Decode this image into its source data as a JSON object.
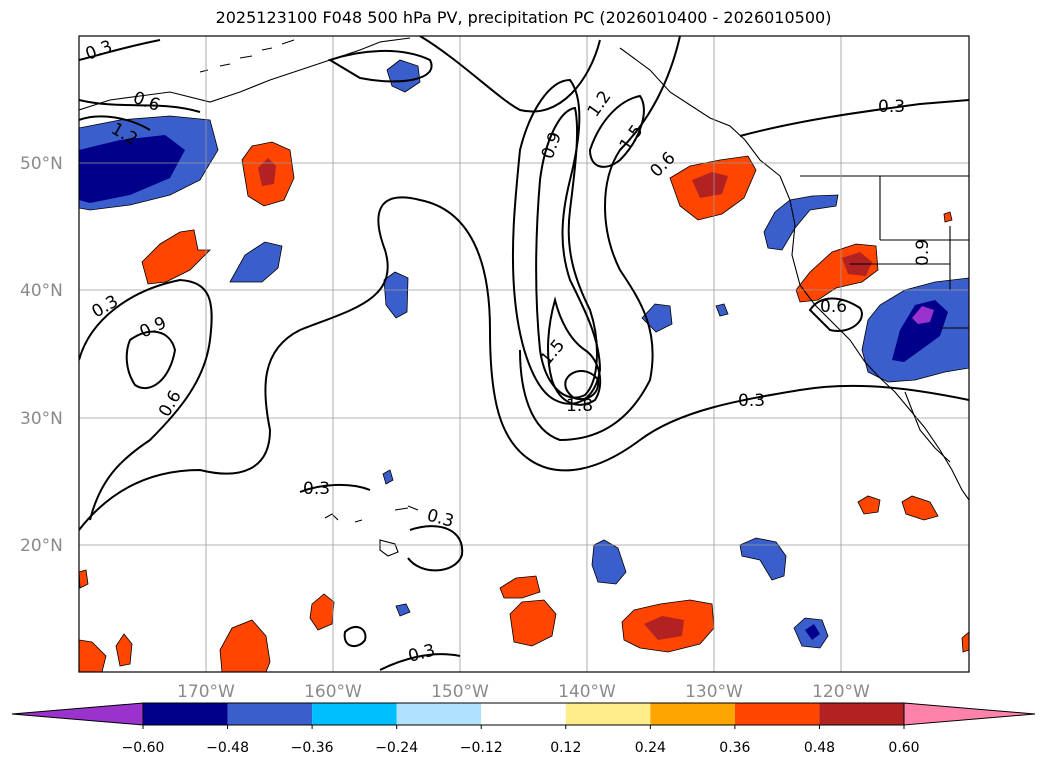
{
  "title": "2025123100 F048 500 hPa PV, precipitation PC (2026010400 - 2026010500)",
  "latitude_labels": [
    "50°N",
    "40°N",
    "30°N",
    "20°N"
  ],
  "longitude_labels": [
    "170°W",
    "160°W",
    "150°W",
    "140°W",
    "130°W",
    "120°W"
  ],
  "pv_contour_labels": [
    "0.3",
    "0.6",
    "0.9",
    "1.2",
    "1.5",
    "1.8"
  ],
  "colorbar": {
    "tick_labels": [
      "−0.60",
      "−0.48",
      "−0.36",
      "−0.24",
      "−0.12",
      "0.12",
      "0.24",
      "0.36",
      "0.48",
      "0.60"
    ],
    "colors": [
      "#9a32cd",
      "#00008b",
      "#3a5fcd",
      "#00bfff",
      "#b0e2ff",
      "#ffffff",
      "#ffec8b",
      "#ffa500",
      "#ff4500",
      "#b22222",
      "#ff82ab"
    ]
  }
}
